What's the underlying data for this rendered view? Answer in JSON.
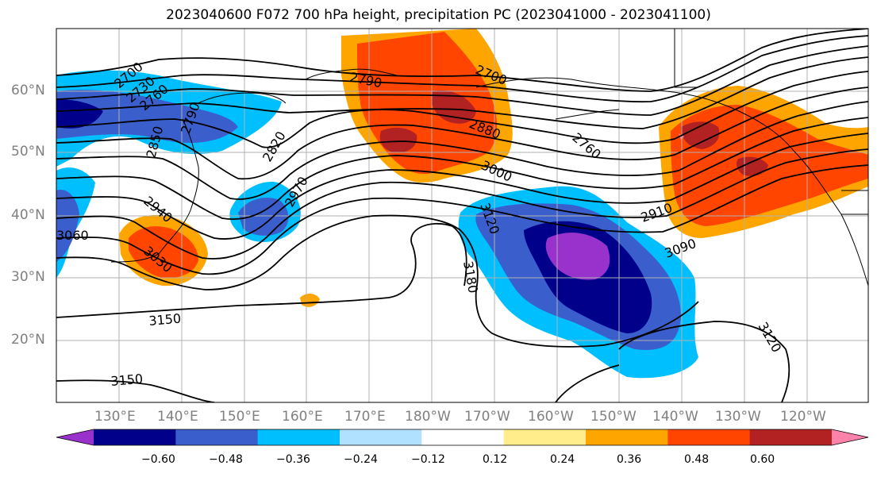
{
  "title": "2023040600 F072 700 hPa height, precipitation PC (2023041000 - 2023041100)",
  "lat_labels": [
    "60°N",
    "50°N",
    "40°N",
    "30°N",
    "20°N"
  ],
  "lon_labels": [
    "130°E",
    "140°E",
    "150°E",
    "160°E",
    "170°E",
    "180°W",
    "170°W",
    "160°W",
    "150°W",
    "140°W",
    "130°W",
    "120°W"
  ],
  "contour_labels": [
    "2700",
    "2730",
    "2760",
    "2790",
    "2700",
    "2820",
    "2850",
    "2880",
    "2760",
    "2790",
    "2970",
    "3000",
    "2940",
    "3060",
    "3030",
    "3120",
    "2910",
    "3090",
    "3180",
    "3150",
    "3120",
    "3150"
  ],
  "colorbar": {
    "tick_labels": [
      "−0.60",
      "−0.48",
      "−0.36",
      "−0.24",
      "−0.12",
      "0.12",
      "0.24",
      "0.36",
      "0.48",
      "0.60"
    ],
    "colors": [
      "#9932cc",
      "#00008b",
      "#3a5fcd",
      "#00bfff",
      "#b0e2ff",
      "#ffffff",
      "#ffec8b",
      "#ffa500",
      "#ff4500",
      "#b22222",
      "#ff82ab"
    ]
  }
}
